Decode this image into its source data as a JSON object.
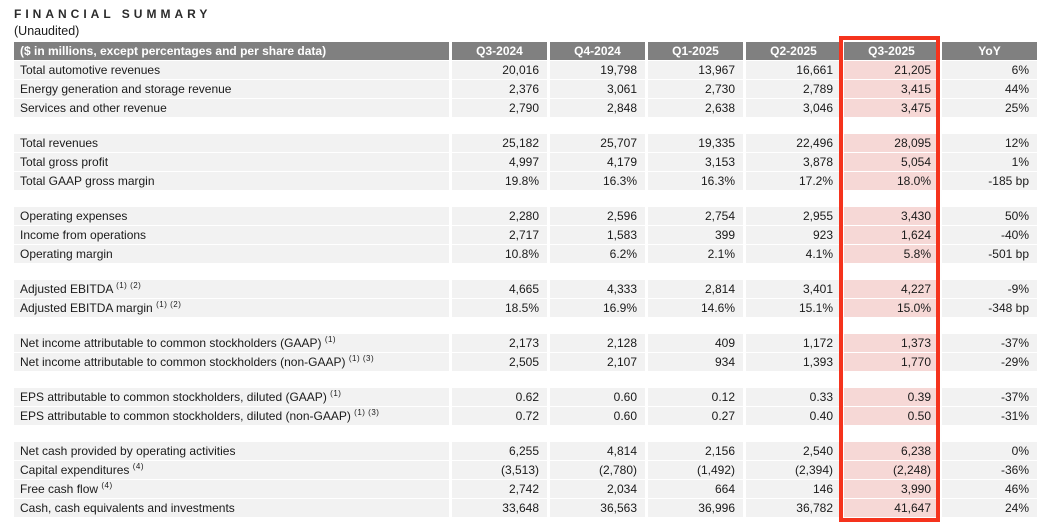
{
  "page": {
    "title": "FINANCIAL SUMMARY",
    "subtitle": "(Unaudited)"
  },
  "colors": {
    "header_bg": "#808080",
    "header_text": "#ffffff",
    "row_bg": "#f2f2f2",
    "highlight_cell_bg": "#f6d8d6",
    "highlight_border": "#f5331d",
    "body_text": "#1a1a1a"
  },
  "table": {
    "header": {
      "label": "($ in millions, except percentages and per share data)",
      "columns": [
        "Q3-2024",
        "Q4-2024",
        "Q1-2025",
        "Q2-2025",
        "Q3-2025",
        "YoY"
      ],
      "highlight_column": "Q3-2025"
    },
    "groups": [
      {
        "rows": [
          {
            "label": "Total automotive revenues",
            "sup": "",
            "values": [
              "20,016",
              "19,798",
              "13,967",
              "16,661",
              "21,205",
              "6%"
            ]
          },
          {
            "label": "Energy generation and storage revenue",
            "sup": "",
            "values": [
              "2,376",
              "3,061",
              "2,730",
              "2,789",
              "3,415",
              "44%"
            ]
          },
          {
            "label": "Services and other revenue",
            "sup": "",
            "values": [
              "2,790",
              "2,848",
              "2,638",
              "3,046",
              "3,475",
              "25%"
            ]
          }
        ]
      },
      {
        "rows": [
          {
            "label": "Total revenues",
            "sup": "",
            "values": [
              "25,182",
              "25,707",
              "19,335",
              "22,496",
              "28,095",
              "12%"
            ]
          },
          {
            "label": "Total gross profit",
            "sup": "",
            "values": [
              "4,997",
              "4,179",
              "3,153",
              "3,878",
              "5,054",
              "1%"
            ]
          },
          {
            "label": "Total GAAP gross margin",
            "sup": "",
            "values": [
              "19.8%",
              "16.3%",
              "16.3%",
              "17.2%",
              "18.0%",
              "-185 bp"
            ]
          }
        ]
      },
      {
        "rows": [
          {
            "label": "Operating expenses",
            "sup": "",
            "values": [
              "2,280",
              "2,596",
              "2,754",
              "2,955",
              "3,430",
              "50%"
            ]
          },
          {
            "label": "Income from operations",
            "sup": "",
            "values": [
              "2,717",
              "1,583",
              "399",
              "923",
              "1,624",
              "-40%"
            ]
          },
          {
            "label": "Operating margin",
            "sup": "",
            "values": [
              "10.8%",
              "6.2%",
              "2.1%",
              "4.1%",
              "5.8%",
              "-501 bp"
            ]
          }
        ]
      },
      {
        "rows": [
          {
            "label": "Adjusted EBITDA",
            "sup": "(1) (2)",
            "values": [
              "4,665",
              "4,333",
              "2,814",
              "3,401",
              "4,227",
              "-9%"
            ]
          },
          {
            "label": "Adjusted EBITDA margin",
            "sup": "(1) (2)",
            "values": [
              "18.5%",
              "16.9%",
              "14.6%",
              "15.1%",
              "15.0%",
              "-348 bp"
            ]
          }
        ]
      },
      {
        "rows": [
          {
            "label": "Net income attributable to common stockholders (GAAP)",
            "sup": "(1)",
            "values": [
              "2,173",
              "2,128",
              "409",
              "1,172",
              "1,373",
              "-37%"
            ]
          },
          {
            "label": "Net income attributable to common stockholders (non-GAAP)",
            "sup": "(1) (3)",
            "values": [
              "2,505",
              "2,107",
              "934",
              "1,393",
              "1,770",
              "-29%"
            ]
          }
        ]
      },
      {
        "rows": [
          {
            "label": "EPS attributable to common stockholders, diluted (GAAP)",
            "sup": "(1)",
            "values": [
              "0.62",
              "0.60",
              "0.12",
              "0.33",
              "0.39",
              "-37%"
            ]
          },
          {
            "label": "EPS attributable to common stockholders, diluted (non-GAAP)",
            "sup": "(1) (3)",
            "values": [
              "0.72",
              "0.60",
              "0.27",
              "0.40",
              "0.50",
              "-31%"
            ]
          }
        ]
      },
      {
        "rows": [
          {
            "label": "Net cash provided by operating activities",
            "sup": "",
            "values": [
              "6,255",
              "4,814",
              "2,156",
              "2,540",
              "6,238",
              "0%"
            ]
          },
          {
            "label": "Capital expenditures",
            "sup": "(4)",
            "values": [
              "(3,513)",
              "(2,780)",
              "(1,492)",
              "(2,394)",
              "(2,248)",
              "-36%"
            ]
          },
          {
            "label": "Free cash flow",
            "sup": "(4)",
            "values": [
              "2,742",
              "2,034",
              "664",
              "146",
              "3,990",
              "46%"
            ]
          },
          {
            "label": "Cash, cash equivalents and investments",
            "sup": "",
            "values": [
              "33,648",
              "36,563",
              "36,996",
              "36,782",
              "41,647",
              "24%"
            ]
          }
        ]
      }
    ]
  }
}
